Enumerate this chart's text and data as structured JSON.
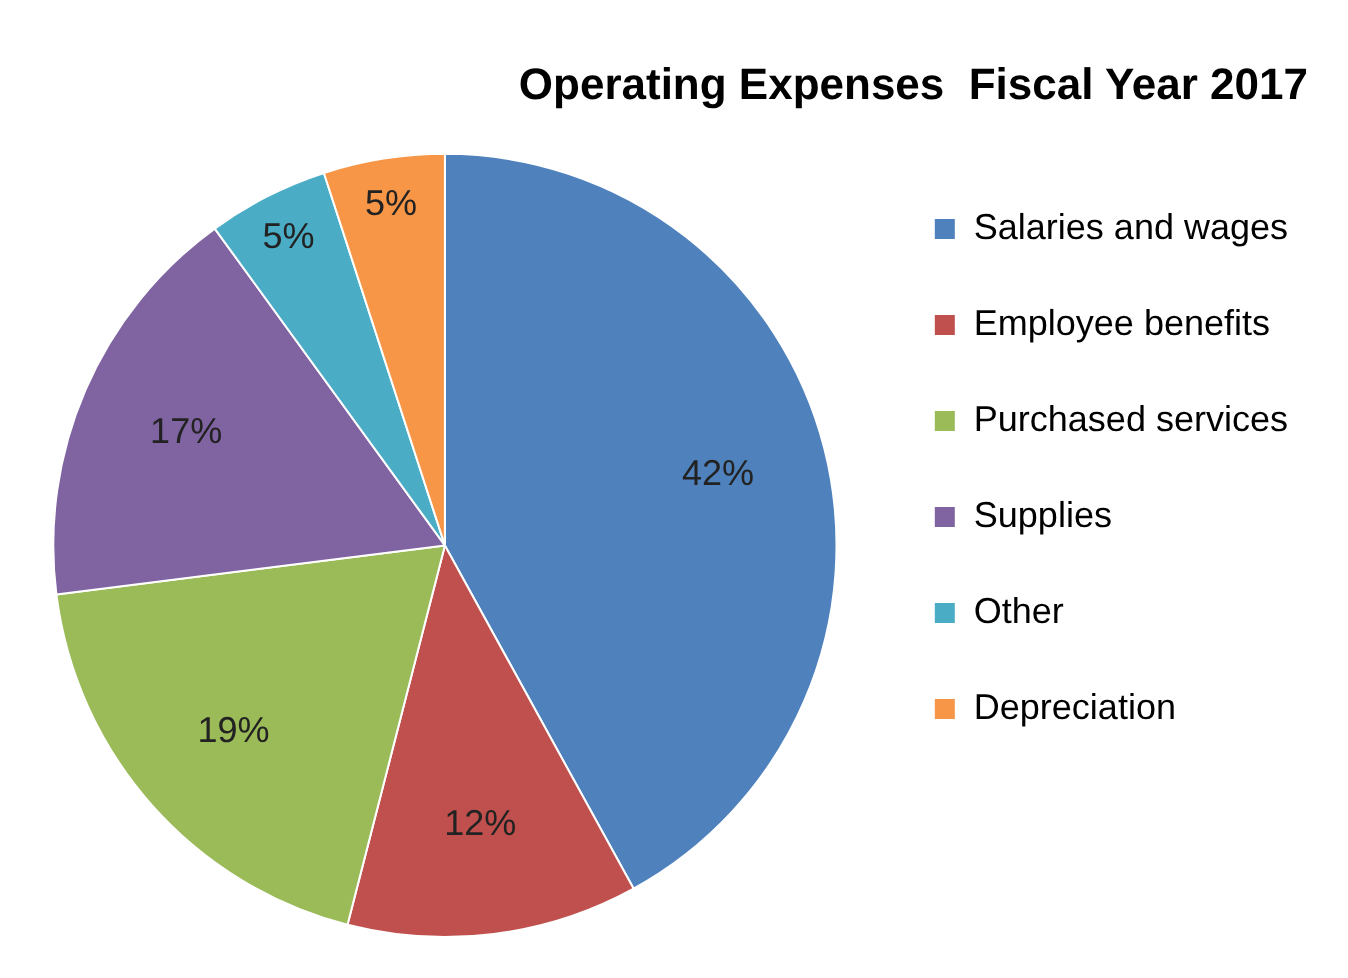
{
  "chart_data": {
    "type": "pie",
    "title": "Operating Expenses  Fiscal Year 2017",
    "categories": [
      "Salaries and wages",
      "Employee benefits",
      "Purchased services",
      "Supplies",
      "Other",
      "Depreciation"
    ],
    "values": [
      42,
      12,
      19,
      17,
      5,
      5
    ],
    "value_labels": [
      "42%",
      "12%",
      "19%",
      "17%",
      "5%",
      "5%"
    ],
    "colors": [
      "#4f81bd",
      "#c0504d",
      "#9bbb59",
      "#8064a2",
      "#4bacc6",
      "#f79646"
    ],
    "legend": "right"
  }
}
